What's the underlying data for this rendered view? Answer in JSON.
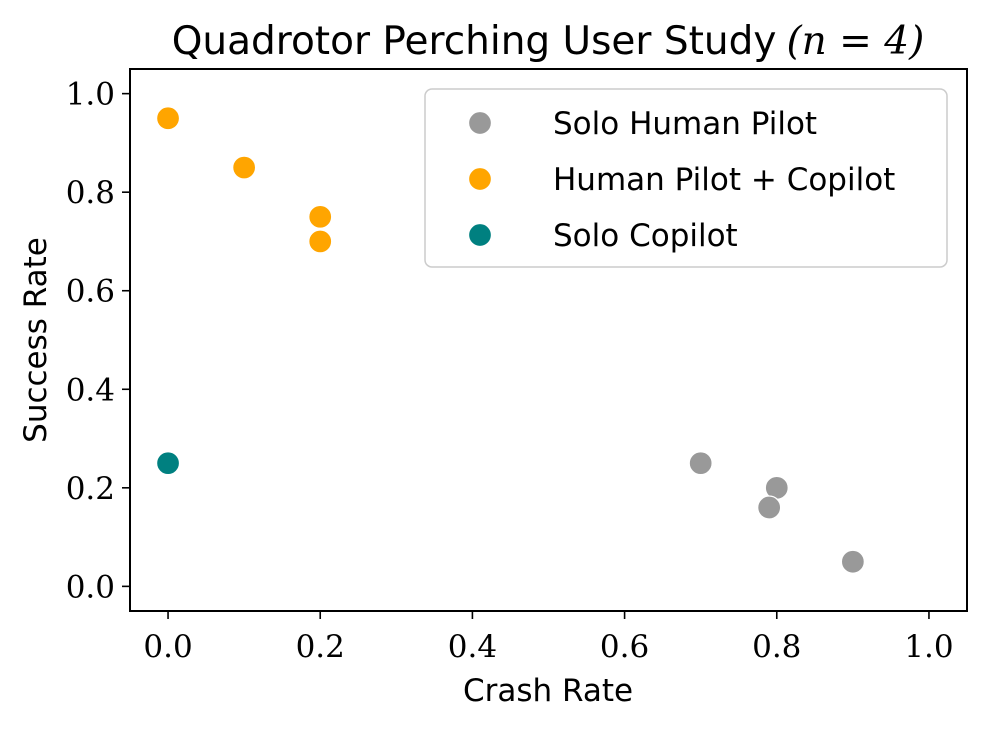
{
  "chart_data": {
    "type": "scatter",
    "title": "Quadrotor Perching User Study",
    "title_math": "(n = 4)",
    "xlabel": "Crash Rate",
    "ylabel": "Success Rate",
    "xlim": [
      -0.05,
      1.05
    ],
    "ylim": [
      -0.05,
      1.05
    ],
    "xticks": [
      0.0,
      0.2,
      0.4,
      0.6,
      0.8,
      1.0
    ],
    "yticks": [
      0.0,
      0.2,
      0.4,
      0.6,
      0.8,
      1.0
    ],
    "xtick_labels": [
      "0.0",
      "0.2",
      "0.4",
      "0.6",
      "0.8",
      "1.0"
    ],
    "ytick_labels": [
      "0.0",
      "0.2",
      "0.4",
      "0.6",
      "0.8",
      "1.0"
    ],
    "grid": false,
    "legend_position": "top-right",
    "series": [
      {
        "name": "Solo Human Pilot",
        "color": "#999999",
        "points": [
          [
            0.7,
            0.25
          ],
          [
            0.8,
            0.2
          ],
          [
            0.79,
            0.16
          ],
          [
            0.9,
            0.05
          ]
        ]
      },
      {
        "name": "Human Pilot + Copilot",
        "color": "#ffa500",
        "points": [
          [
            0.0,
            0.95
          ],
          [
            0.1,
            0.85
          ],
          [
            0.2,
            0.75
          ],
          [
            0.2,
            0.7
          ]
        ]
      },
      {
        "name": "Solo Copilot",
        "color": "#008080",
        "points": [
          [
            0.0,
            0.25
          ]
        ]
      }
    ]
  }
}
